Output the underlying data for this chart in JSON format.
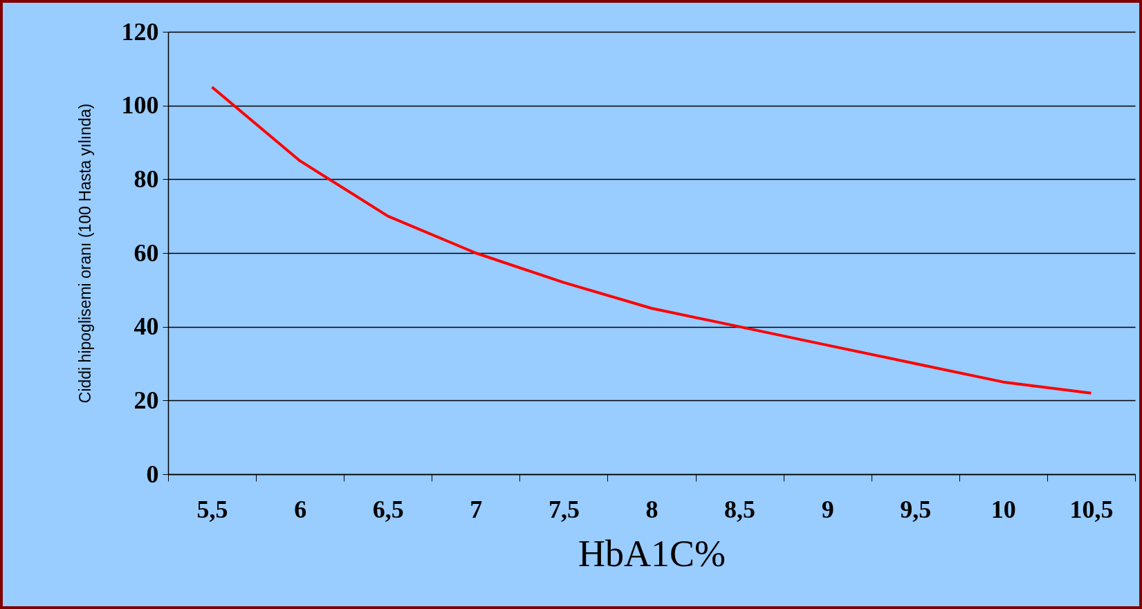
{
  "chart_data": {
    "type": "line",
    "xlabel": "HbA1C%",
    "ylabel": "Ciddi hipoglisemi oranı (100 Hasta yılında)",
    "categories": [
      "5,5",
      "6",
      "6,5",
      "7",
      "7,5",
      "8",
      "8,5",
      "9",
      "9,5",
      "10",
      "10,5"
    ],
    "values": [
      105,
      85,
      70,
      60,
      52,
      45,
      40,
      35,
      30,
      25,
      22
    ],
    "color": "#ff0000",
    "ylim": [
      0,
      120
    ],
    "yticks": [
      0,
      20,
      40,
      60,
      80,
      100,
      120
    ],
    "grid": "y",
    "line_style": "solid"
  }
}
